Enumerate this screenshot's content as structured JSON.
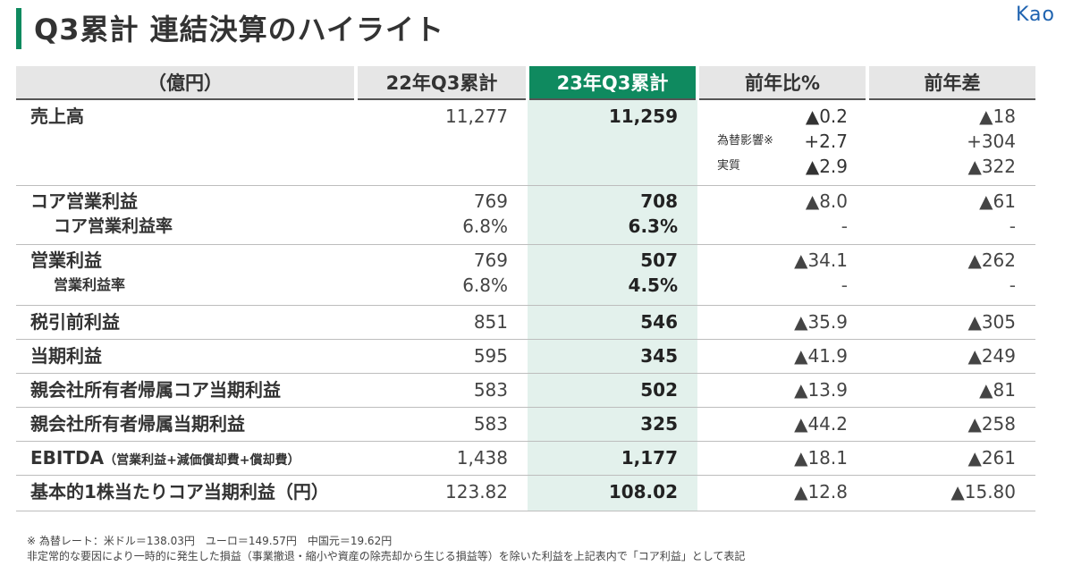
{
  "header": {
    "title": "Q3累計 連結決算のハイライト",
    "logo": "Kao",
    "accent_color": "#0f8a5f"
  },
  "table": {
    "columns": [
      "（億円）",
      "22年Q3累計",
      "23年Q3累計",
      "前年比%",
      "前年差"
    ],
    "rows": [
      {
        "label": "売上高",
        "prev": "11,277",
        "curr": "11,259",
        "yoy": [
          "▲0.2",
          "+2.7",
          "▲2.9"
        ],
        "yoy_tags": [
          "",
          "為替影響※",
          "実質"
        ],
        "diff": [
          "▲18",
          "+304",
          "▲322"
        ]
      },
      {
        "label": "コア営業利益",
        "sub_label": "コア営業利益率",
        "prev": "769",
        "prev_sub": "6.8%",
        "curr": "708",
        "curr_sub": "6.3%",
        "yoy": "▲8.0",
        "yoy_sub": "-",
        "diff": "▲61",
        "diff_sub": "-"
      },
      {
        "label": "営業利益",
        "sub_label": "営業利益率",
        "prev": "769",
        "prev_sub": "6.8%",
        "curr": "507",
        "curr_sub": "4.5%",
        "yoy": "▲34.1",
        "yoy_sub": "-",
        "diff": "▲262",
        "diff_sub": "-"
      },
      {
        "label": "税引前利益",
        "prev": "851",
        "curr": "546",
        "yoy": "▲35.9",
        "diff": "▲305"
      },
      {
        "label": "当期利益",
        "prev": "595",
        "curr": "345",
        "yoy": "▲41.9",
        "diff": "▲249"
      },
      {
        "label": "親会社所有者帰属コア当期利益",
        "prev": "583",
        "curr": "502",
        "yoy": "▲13.9",
        "diff": "▲81"
      },
      {
        "label": "親会社所有者帰属当期利益",
        "prev": "583",
        "curr": "325",
        "yoy": "▲44.2",
        "diff": "▲258"
      },
      {
        "label": "EBITDA",
        "label_note": "（営業利益+減価償却費+償却費）",
        "prev": "1,438",
        "curr": "1,177",
        "yoy": "▲18.1",
        "diff": "▲261"
      },
      {
        "label": "基本的1株当たりコア当期利益（円）",
        "prev": "123.82",
        "curr": "108.02",
        "yoy": "▲12.8",
        "diff": "▲15.80"
      }
    ]
  },
  "footnotes": {
    "line1": "※ 為替レート：米ドル＝138.03円　ユーロ＝149.57円　中国元＝19.62円",
    "line2": "非定常的な要因により一時的に発生した損益（事業撤退・縮小や資産の除売却から生じる損益等）を除いた利益を上記表内で「コア利益」として表記"
  }
}
